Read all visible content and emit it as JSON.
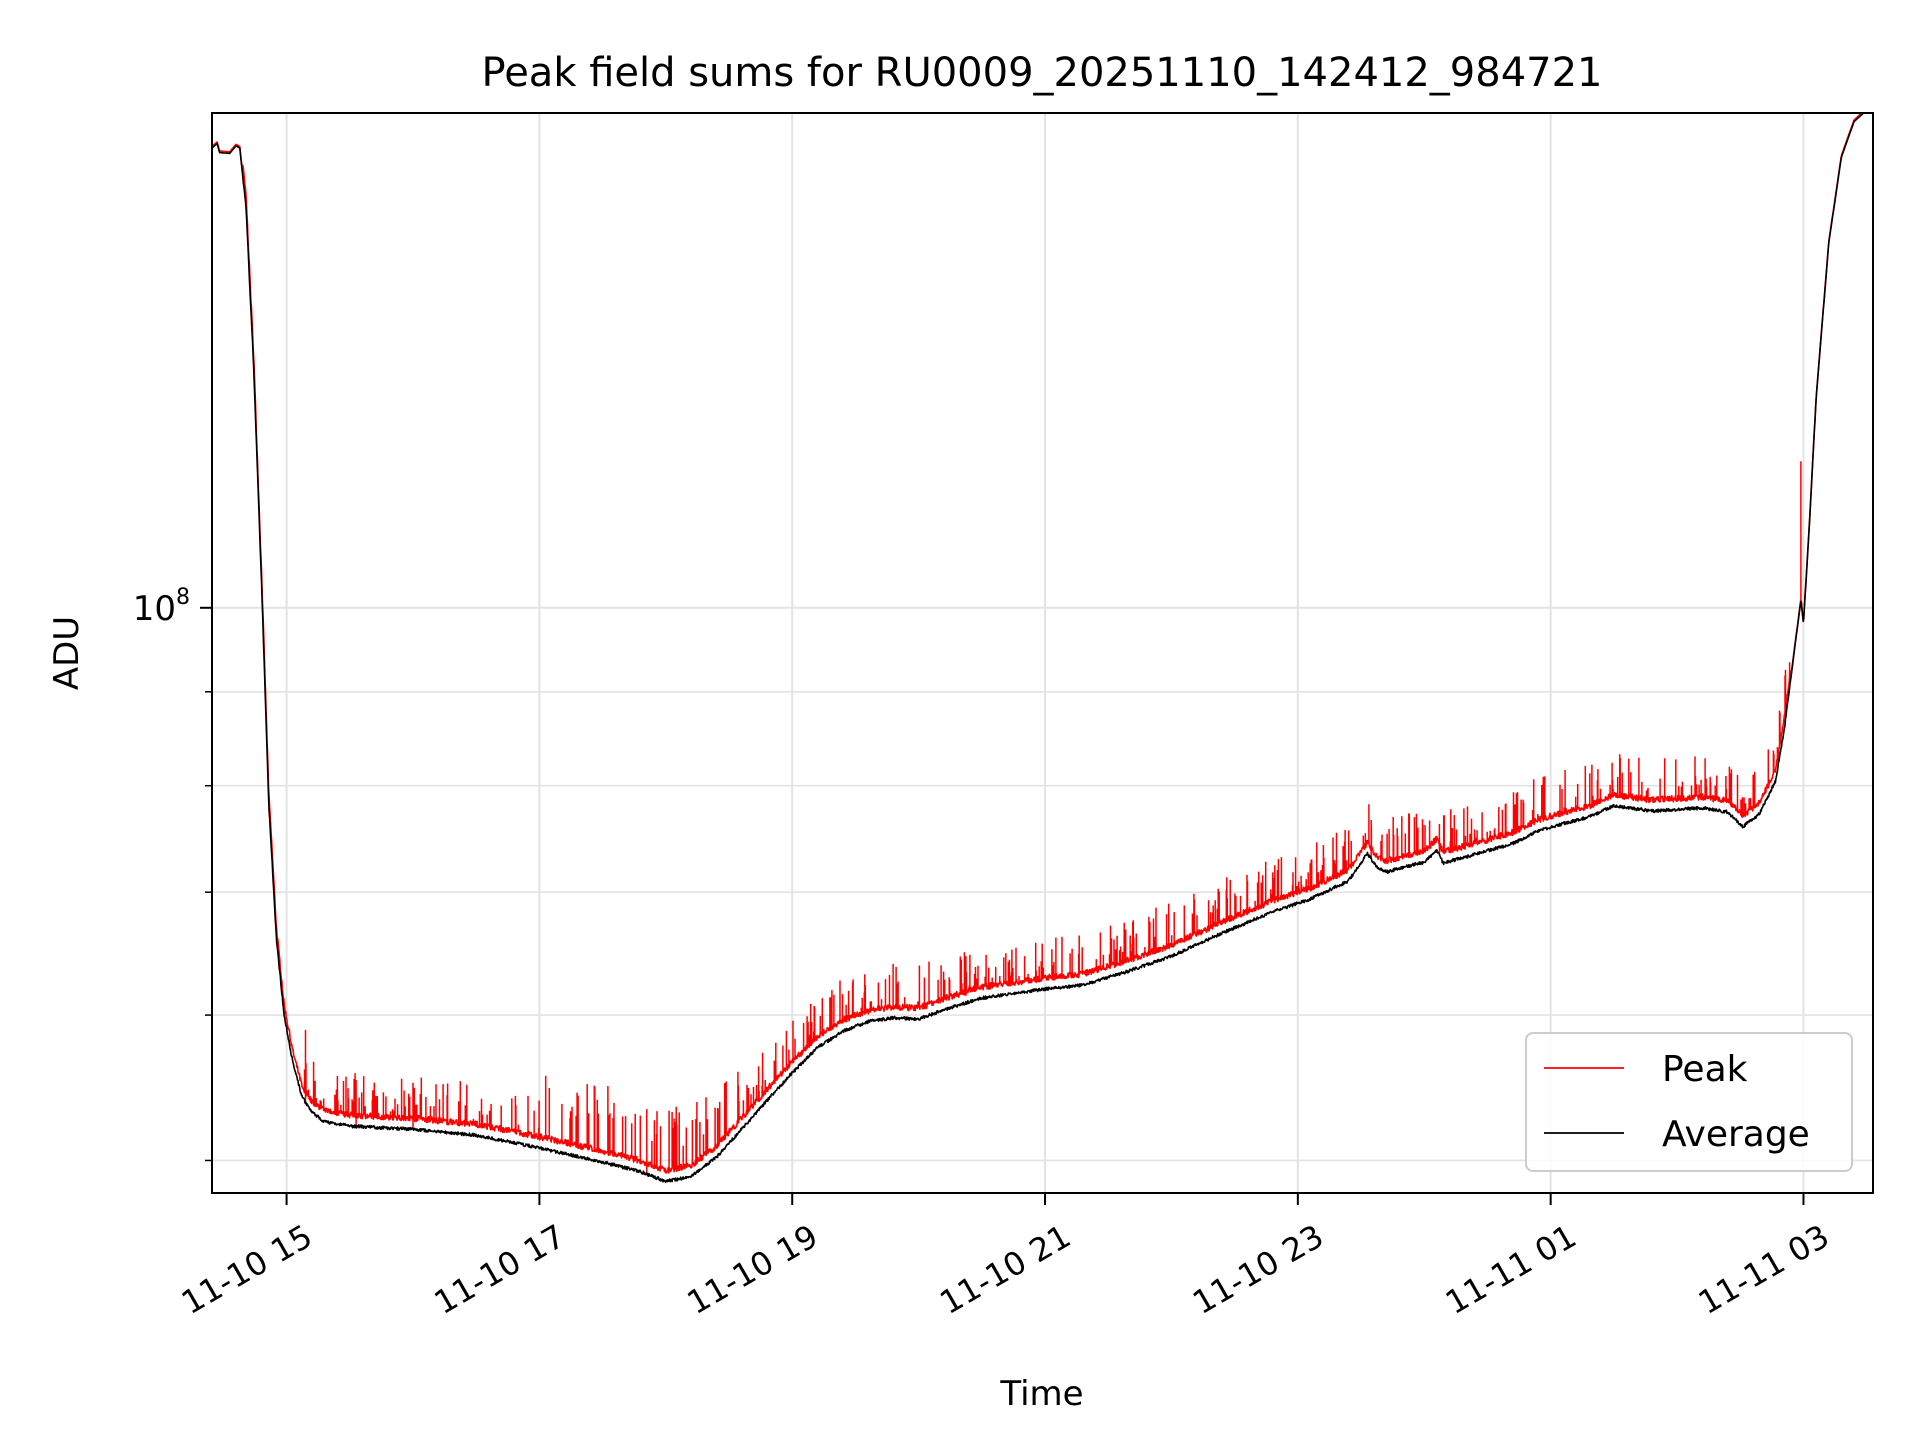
{
  "chart_data": {
    "type": "line",
    "title": "Peak field sums for RU0009_20251110_142412_984721",
    "xlabel": "Time",
    "ylabel": "ADU",
    "yscale": "log",
    "grid": true,
    "legend_position": "lower-right",
    "x_units": "hours since 2025-11-10 00:00",
    "xlim": [
      14.41,
      27.55
    ],
    "ylim": [
      48000000,
      186000000
    ],
    "y_tick_labels": [
      {
        "value": 100000000,
        "base": "10",
        "exp": "8"
      }
    ],
    "x_tick_labels": [
      {
        "value": 15,
        "label": "11-10 15"
      },
      {
        "value": 17,
        "label": "11-10 17"
      },
      {
        "value": 19,
        "label": "11-10 19"
      },
      {
        "value": 21,
        "label": "11-10 21"
      },
      {
        "value": 23,
        "label": "11-10 23"
      },
      {
        "value": 25,
        "label": "11-11 01"
      },
      {
        "value": 27,
        "label": "11-11 03"
      }
    ],
    "series": [
      {
        "name": "Peak",
        "color": "#ff0000"
      },
      {
        "name": "Average",
        "color": "#000000"
      }
    ],
    "average_points": [
      [
        14.41,
        178000000
      ],
      [
        14.45,
        179000000
      ],
      [
        14.47,
        177000000
      ],
      [
        14.55,
        176800000
      ],
      [
        14.6,
        178500000
      ],
      [
        14.63,
        178000000
      ],
      [
        14.68,
        165000000
      ],
      [
        14.74,
        135000000
      ],
      [
        14.8,
        104000000
      ],
      [
        14.86,
        78000000
      ],
      [
        14.92,
        66000000
      ],
      [
        14.98,
        60000000
      ],
      [
        15.05,
        56500000
      ],
      [
        15.12,
        54200000
      ],
      [
        15.2,
        53100000
      ],
      [
        15.3,
        52500000
      ],
      [
        15.5,
        52200000
      ],
      [
        16.0,
        52000000
      ],
      [
        16.5,
        51600000
      ],
      [
        17.0,
        50800000
      ],
      [
        17.5,
        49900000
      ],
      [
        17.8,
        49300000
      ],
      [
        18.0,
        48700000
      ],
      [
        18.2,
        49000000
      ],
      [
        18.4,
        50200000
      ],
      [
        18.6,
        52000000
      ],
      [
        18.8,
        53900000
      ],
      [
        19.0,
        55800000
      ],
      [
        19.2,
        57600000
      ],
      [
        19.4,
        58800000
      ],
      [
        19.6,
        59500000
      ],
      [
        19.8,
        59800000
      ],
      [
        20.0,
        59700000
      ],
      [
        20.2,
        60400000
      ],
      [
        20.5,
        61300000
      ],
      [
        20.8,
        61700000
      ],
      [
        21.0,
        62000000
      ],
      [
        21.3,
        62300000
      ],
      [
        21.6,
        63200000
      ],
      [
        22.0,
        64600000
      ],
      [
        22.4,
        66500000
      ],
      [
        22.8,
        68300000
      ],
      [
        23.1,
        69400000
      ],
      [
        23.4,
        71000000
      ],
      [
        23.55,
        73500000
      ],
      [
        23.62,
        72300000
      ],
      [
        23.7,
        71800000
      ],
      [
        24.0,
        72700000
      ],
      [
        24.1,
        73800000
      ],
      [
        24.15,
        72600000
      ],
      [
        24.4,
        73400000
      ],
      [
        24.7,
        74400000
      ],
      [
        24.9,
        75600000
      ],
      [
        25.1,
        76300000
      ],
      [
        25.3,
        76900000
      ],
      [
        25.5,
        78000000
      ],
      [
        25.8,
        77500000
      ],
      [
        26.2,
        77800000
      ],
      [
        26.4,
        77400000
      ],
      [
        26.52,
        76000000
      ],
      [
        26.65,
        77200000
      ],
      [
        26.78,
        80500000
      ],
      [
        26.85,
        86000000
      ],
      [
        26.93,
        95000000
      ],
      [
        26.98,
        101000000
      ],
      [
        27.0,
        98000000
      ],
      [
        27.05,
        112000000
      ],
      [
        27.1,
        130000000
      ],
      [
        27.2,
        158000000
      ],
      [
        27.3,
        176000000
      ],
      [
        27.4,
        184000000
      ],
      [
        27.55,
        188000000
      ]
    ]
  }
}
